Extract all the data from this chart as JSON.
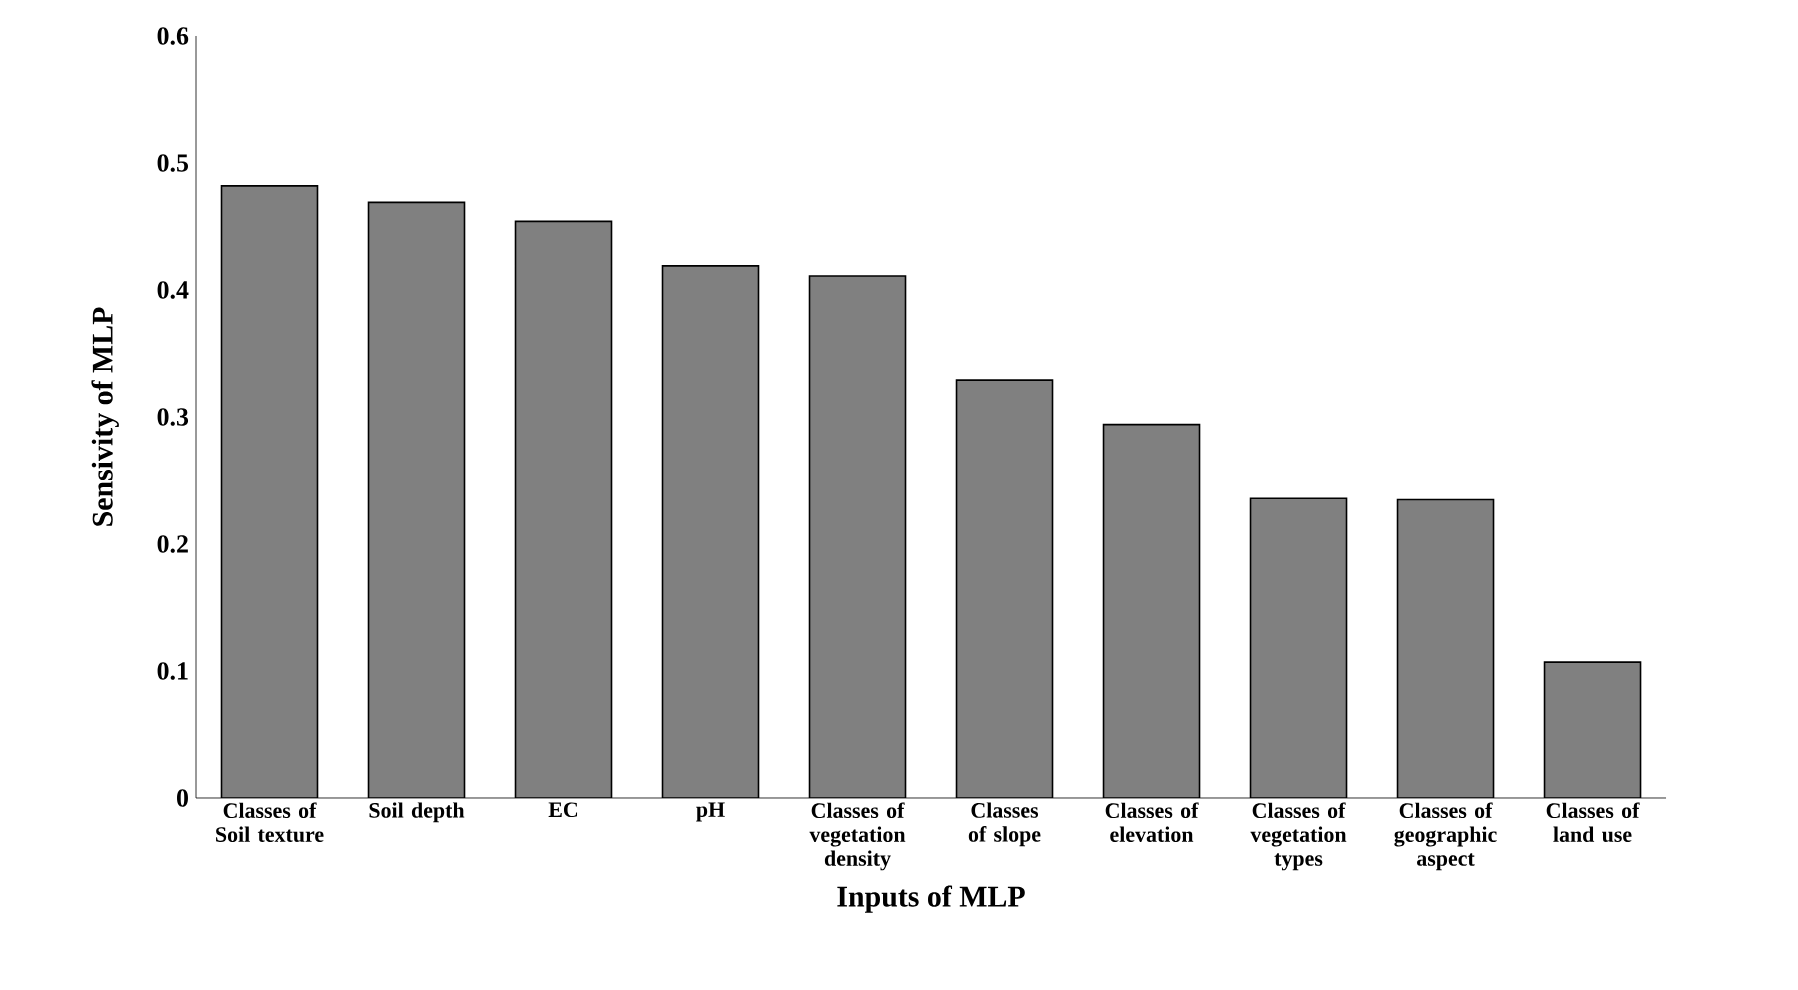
{
  "chart_data": {
    "type": "bar",
    "xlabel": "Inputs of MLP",
    "ylabel": "Sensivity of MLP",
    "categories": [
      "Classes of Soil texture",
      "Soil depth",
      "EC",
      "pH",
      "Classes of vegetation density",
      "Classes of slope",
      "Classes of elevation",
      "Classes of vegetation types",
      "Classes of geographic aspect",
      "Classes of land use"
    ],
    "values": [
      0.482,
      0.469,
      0.454,
      0.419,
      0.411,
      0.329,
      0.294,
      0.236,
      0.235,
      0.107
    ],
    "color": "#808080",
    "ylim": [
      0,
      0.6
    ],
    "yticks": [
      0,
      0.1,
      0.2,
      0.3,
      0.4,
      0.5,
      0.6
    ],
    "grid": false
  }
}
